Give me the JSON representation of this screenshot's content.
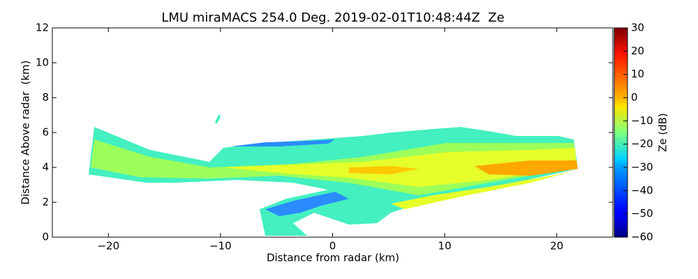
{
  "chart_data": {
    "type": "heatmap",
    "title": "LMU miraMACS 254.0 Deg. 2019-02-01T10:48:44Z  Ze",
    "x_label": "Distance from radar (km)",
    "y_label": "Distance Above radar  (km)",
    "xlim": [
      -25,
      25
    ],
    "xticks": [
      {
        "value": -20,
        "label": "−20"
      },
      {
        "value": -10,
        "label": "−10"
      },
      0,
      10,
      20
    ],
    "ylim": [
      0,
      12
    ],
    "yticks": [
      0,
      2,
      4,
      6,
      8,
      10,
      12
    ],
    "colorbar": {
      "label": "Ze (dB)",
      "lim": [
        -60,
        30
      ],
      "ticks": [
        {
          "value": -60,
          "label": "−60"
        },
        {
          "value": -50,
          "label": "−50"
        },
        {
          "value": -40,
          "label": "−40"
        },
        {
          "value": -30,
          "label": "−30"
        },
        {
          "value": -20,
          "label": "−20"
        },
        {
          "value": -10,
          "label": "−10"
        },
        0,
        10,
        20,
        30
      ],
      "colormap": "jet"
    }
  }
}
